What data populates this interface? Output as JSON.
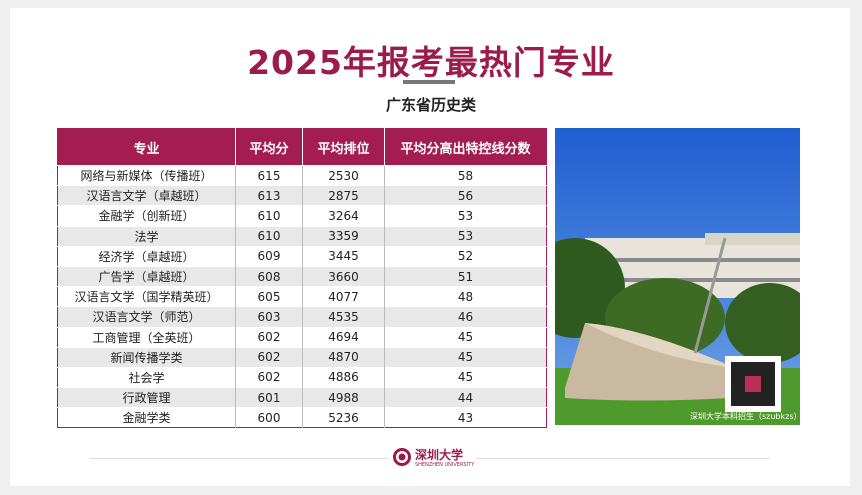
{
  "header": {
    "title": "2025年报考最热门专业",
    "subtitle": "广东省历史类"
  },
  "table": {
    "columns": [
      "专业",
      "平均分",
      "平均排位",
      "平均分高出特控线分数"
    ],
    "rows": [
      [
        "网络与新媒体（传播班）",
        615,
        2530,
        58
      ],
      [
        "汉语言文学（卓越班）",
        613,
        2875,
        56
      ],
      [
        "金融学（创新班）",
        610,
        3264,
        53
      ],
      [
        "法学",
        610,
        3359,
        53
      ],
      [
        "经济学（卓越班）",
        609,
        3445,
        52
      ],
      [
        "广告学（卓越班）",
        608,
        3660,
        51
      ],
      [
        "汉语言文学（国学精英班）",
        605,
        4077,
        48
      ],
      [
        "汉语言文学（师范）",
        603,
        4535,
        46
      ],
      [
        "工商管理（全英班）",
        602,
        4694,
        45
      ],
      [
        "新闻传播学类",
        602,
        4870,
        45
      ],
      [
        "社会学",
        602,
        4886,
        45
      ],
      [
        "行政管理",
        601,
        4988,
        44
      ],
      [
        "金融学类",
        600,
        5236,
        43
      ]
    ]
  },
  "photo": {
    "caption": "深圳大学本科招生（szubkzs）"
  },
  "footer": {
    "logo_cn": "深圳大学",
    "logo_en": "SHENZHEN UNIVERSITY"
  }
}
